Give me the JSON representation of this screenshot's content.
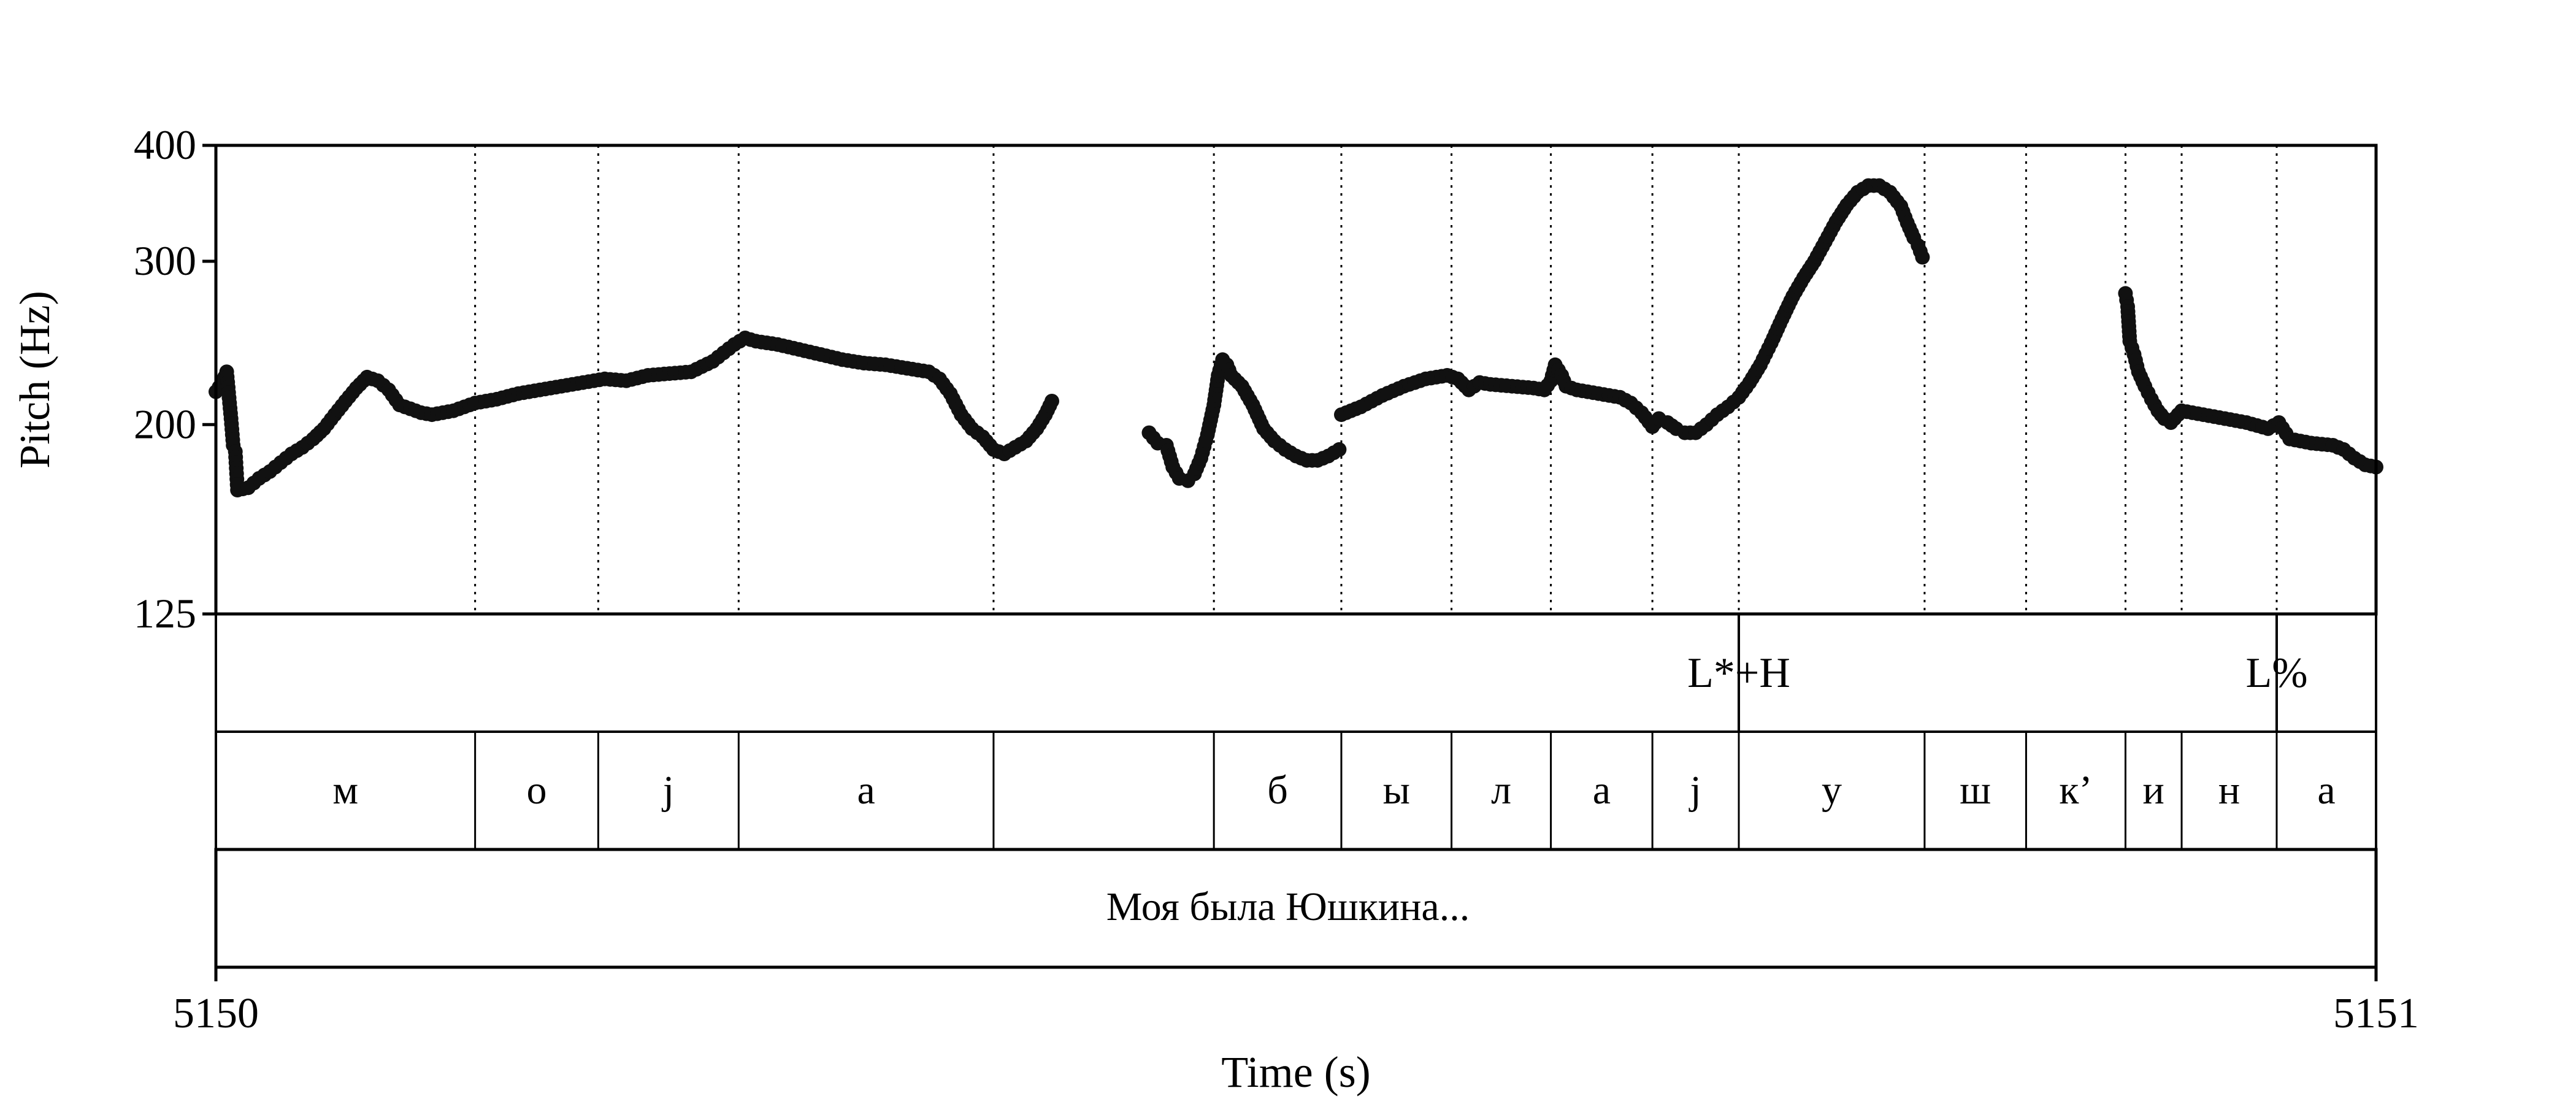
{
  "chart_data": {
    "type": "scatter",
    "xlabel": "Time (s)",
    "ylabel": "Pitch (Hz)",
    "xlim": [
      5150,
      5151
    ],
    "ylim": [
      125,
      400
    ],
    "y_scale": "log",
    "x_ticks": [
      "5150",
      "5151"
    ],
    "y_ticks": [
      {
        "value": 400,
        "label": "400"
      },
      {
        "value": 300,
        "label": "300"
      },
      {
        "value": 200,
        "label": "200"
      },
      {
        "value": 125,
        "label": "125"
      }
    ],
    "segment_boundaries": [
      5150.12,
      5150.177,
      5150.242,
      5150.36,
      5150.462,
      5150.521,
      5150.572,
      5150.618,
      5150.665,
      5150.705,
      5150.791,
      5150.838,
      5150.884,
      5150.91,
      5150.954
    ],
    "tone_tier": [
      {
        "label": "L*+H",
        "t": 5150.705
      },
      {
        "label": "L%",
        "t": 5150.954
      }
    ],
    "segment_tier": [
      {
        "label": "м",
        "start": 5150.0,
        "end": 5150.12
      },
      {
        "label": "о",
        "start": 5150.12,
        "end": 5150.177
      },
      {
        "label": "j",
        "start": 5150.177,
        "end": 5150.242
      },
      {
        "label": "а",
        "start": 5150.242,
        "end": 5150.36
      },
      {
        "label": "",
        "start": 5150.36,
        "end": 5150.462
      },
      {
        "label": "б",
        "start": 5150.462,
        "end": 5150.521
      },
      {
        "label": "ы",
        "start": 5150.521,
        "end": 5150.572
      },
      {
        "label": "л",
        "start": 5150.572,
        "end": 5150.618
      },
      {
        "label": "а",
        "start": 5150.618,
        "end": 5150.665
      },
      {
        "label": "j",
        "start": 5150.665,
        "end": 5150.705
      },
      {
        "label": "у",
        "start": 5150.705,
        "end": 5150.791
      },
      {
        "label": "ш",
        "start": 5150.791,
        "end": 5150.838
      },
      {
        "label": "к’",
        "start": 5150.838,
        "end": 5150.884
      },
      {
        "label": "и",
        "start": 5150.884,
        "end": 5150.91
      },
      {
        "label": "н",
        "start": 5150.91,
        "end": 5150.954
      },
      {
        "label": "а",
        "start": 5150.954,
        "end": 5151.0
      }
    ],
    "sentence_tier": {
      "label": "Моя была Юшкина...",
      "start": 5150.0,
      "end": 5151.0
    },
    "series": [
      {
        "points": [
          [
            5150.0,
            217
          ],
          [
            5150.003,
            222
          ],
          [
            5150.005,
            228
          ],
          [
            5150.007,
            203
          ],
          [
            5150.008,
            190
          ],
          [
            5150.009,
            187
          ],
          [
            5150.01,
            170
          ],
          [
            5150.015,
            171
          ],
          [
            5150.02,
            175
          ],
          [
            5150.025,
            178
          ],
          [
            5150.03,
            182
          ],
          [
            5150.035,
            186
          ],
          [
            5150.04,
            189
          ],
          [
            5150.045,
            193
          ],
          [
            5150.05,
            198
          ],
          [
            5150.055,
            205
          ],
          [
            5150.06,
            212
          ],
          [
            5150.065,
            219
          ],
          [
            5150.07,
            225
          ],
          [
            5150.075,
            223
          ],
          [
            5150.08,
            218
          ],
          [
            5150.085,
            210
          ],
          [
            5150.09,
            208
          ],
          [
            5150.095,
            206
          ],
          [
            5150.1,
            205
          ],
          [
            5150.105,
            206
          ],
          [
            5150.11,
            207
          ],
          [
            5150.115,
            209
          ],
          [
            5150.12,
            211
          ],
          [
            5150.13,
            213
          ],
          [
            5150.14,
            216
          ],
          [
            5150.15,
            218
          ],
          [
            5150.16,
            220
          ],
          [
            5150.17,
            222
          ],
          [
            5150.175,
            223
          ],
          [
            5150.18,
            224
          ],
          [
            5150.19,
            223
          ],
          [
            5150.2,
            226
          ],
          [
            5150.21,
            227
          ],
          [
            5150.22,
            228
          ],
          [
            5150.23,
            234
          ],
          [
            5150.235,
            239
          ],
          [
            5150.24,
            244
          ],
          [
            5150.245,
            248
          ],
          [
            5150.25,
            246
          ],
          [
            5150.26,
            244
          ],
          [
            5150.27,
            241
          ],
          [
            5150.28,
            238
          ],
          [
            5150.29,
            235
          ],
          [
            5150.3,
            233
          ],
          [
            5150.31,
            232
          ],
          [
            5150.32,
            230
          ],
          [
            5150.33,
            228
          ],
          [
            5150.335,
            224
          ],
          [
            5150.34,
            216
          ],
          [
            5150.345,
            205
          ],
          [
            5150.35,
            198
          ],
          [
            5150.355,
            194
          ],
          [
            5150.36,
            188
          ],
          [
            5150.365,
            186
          ],
          [
            5150.37,
            189
          ],
          [
            5150.375,
            192
          ],
          [
            5150.38,
            198
          ],
          [
            5150.384,
            205
          ],
          [
            5150.387,
            212
          ]
        ]
      },
      {
        "points": [
          [
            5150.432,
            196
          ],
          [
            5150.436,
            191
          ],
          [
            5150.44,
            190
          ],
          [
            5150.443,
            180
          ],
          [
            5150.446,
            175
          ],
          [
            5150.45,
            174
          ],
          [
            5150.453,
            177
          ],
          [
            5150.456,
            184
          ],
          [
            5150.459,
            195
          ],
          [
            5150.462,
            210
          ],
          [
            5150.464,
            226
          ],
          [
            5150.466,
            235
          ],
          [
            5150.468,
            232
          ],
          [
            5150.47,
            226
          ],
          [
            5150.475,
            220
          ],
          [
            5150.48,
            210
          ],
          [
            5150.485,
            198
          ],
          [
            5150.49,
            192
          ],
          [
            5150.495,
            188
          ],
          [
            5150.5,
            185
          ],
          [
            5150.505,
            183
          ],
          [
            5150.51,
            183
          ],
          [
            5150.515,
            185
          ],
          [
            5150.52,
            188
          ]
        ]
      },
      {
        "points": [
          [
            5150.521,
            205
          ],
          [
            5150.53,
            209
          ],
          [
            5150.54,
            215
          ],
          [
            5150.55,
            220
          ],
          [
            5150.56,
            224
          ],
          [
            5150.57,
            226
          ],
          [
            5150.575,
            224
          ],
          [
            5150.58,
            218
          ],
          [
            5150.585,
            222
          ],
          [
            5150.59,
            221
          ],
          [
            5150.6,
            220
          ],
          [
            5150.61,
            219
          ],
          [
            5150.615,
            218
          ],
          [
            5150.618,
            223
          ],
          [
            5150.62,
            232
          ],
          [
            5150.623,
            226
          ],
          [
            5150.625,
            220
          ],
          [
            5150.63,
            218
          ],
          [
            5150.64,
            216
          ],
          [
            5150.65,
            214
          ],
          [
            5150.655,
            211
          ],
          [
            5150.66,
            206
          ],
          [
            5150.665,
            199
          ],
          [
            5150.668,
            203
          ],
          [
            5150.672,
            201
          ],
          [
            5150.676,
            198
          ],
          [
            5150.68,
            196
          ],
          [
            5150.685,
            196
          ],
          [
            5150.69,
            200
          ],
          [
            5150.695,
            205
          ],
          [
            5150.7,
            209
          ],
          [
            5150.705,
            214
          ],
          [
            5150.71,
            222
          ],
          [
            5150.715,
            232
          ],
          [
            5150.72,
            245
          ],
          [
            5150.725,
            260
          ],
          [
            5150.73,
            275
          ],
          [
            5150.735,
            288
          ],
          [
            5150.74,
            300
          ],
          [
            5150.745,
            315
          ],
          [
            5150.75,
            331
          ],
          [
            5150.755,
            345
          ],
          [
            5150.76,
            356
          ],
          [
            5150.765,
            362
          ],
          [
            5150.77,
            362
          ],
          [
            5150.775,
            356
          ],
          [
            5150.78,
            344
          ],
          [
            5150.783,
            330
          ],
          [
            5150.786,
            318
          ],
          [
            5150.788,
            312
          ],
          [
            5150.79,
            303
          ]
        ]
      },
      {
        "points": [
          [
            5150.884,
            277
          ],
          [
            5150.885,
            268
          ],
          [
            5150.886,
            246
          ],
          [
            5150.888,
            238
          ],
          [
            5150.89,
            228
          ],
          [
            5150.893,
            220
          ],
          [
            5150.896,
            213
          ],
          [
            5150.899,
            207
          ],
          [
            5150.902,
            203
          ],
          [
            5150.905,
            201
          ],
          [
            5150.91,
            207
          ],
          [
            5150.915,
            206
          ],
          [
            5150.92,
            205
          ],
          [
            5150.93,
            203
          ],
          [
            5150.94,
            201
          ],
          [
            5150.95,
            198
          ],
          [
            5150.955,
            201
          ],
          [
            5150.96,
            193
          ],
          [
            5150.97,
            191
          ],
          [
            5150.98,
            190
          ],
          [
            5150.985,
            188
          ],
          [
            5150.99,
            184
          ],
          [
            5150.995,
            181
          ],
          [
            5151.0,
            180
          ]
        ]
      }
    ]
  }
}
